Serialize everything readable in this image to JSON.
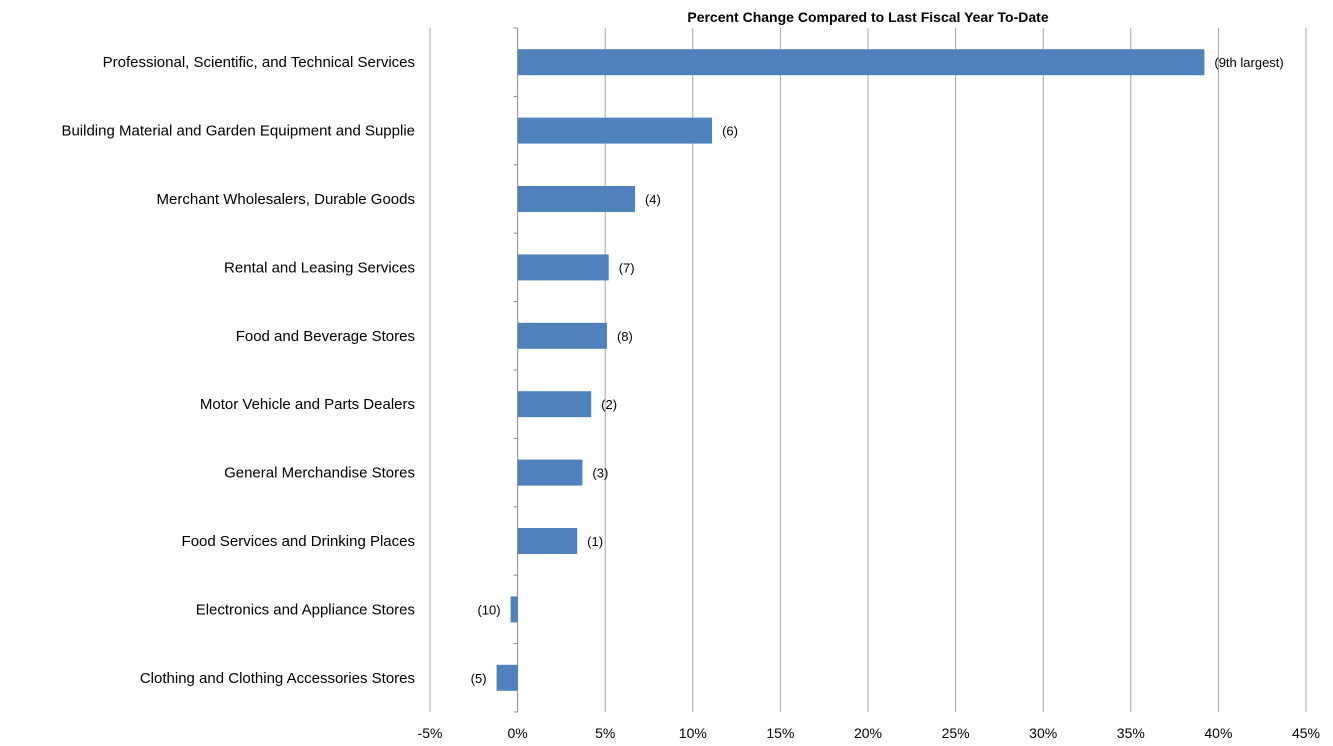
{
  "chart_data": {
    "type": "bar",
    "orientation": "horizontal",
    "title": "Percent Change Compared to Last Fiscal  Year To-Date",
    "xlim": [
      -5,
      45
    ],
    "x_tick_step": 5,
    "x_tick_labels": [
      "-5%",
      "0%",
      "5%",
      "10%",
      "15%",
      "20%",
      "25%",
      "30%",
      "35%",
      "40%",
      "45%"
    ],
    "grid": "vertical",
    "legend": "none",
    "bar_color": "#4f81bd",
    "categories": [
      "Professional, Scientific, and Technical Services",
      "Building Material and Garden Equipment and Supplie",
      "Merchant Wholesalers, Durable Goods",
      "Rental and Leasing Services",
      "Food and Beverage Stores",
      "Motor Vehicle and Parts Dealers",
      "General Merchandise Stores",
      "Food Services and Drinking Places",
      "Electronics and Appliance Stores",
      "Clothing and Clothing Accessories Stores"
    ],
    "values": [
      39.2,
      11.1,
      6.7,
      5.2,
      5.1,
      4.2,
      3.7,
      3.4,
      -0.4,
      -1.2
    ],
    "data_labels": [
      "(9th largest)",
      "(6)",
      "(4)",
      "(7)",
      "(8)",
      "(2)",
      "(3)",
      "(1)",
      "(10)",
      "(5)"
    ]
  }
}
